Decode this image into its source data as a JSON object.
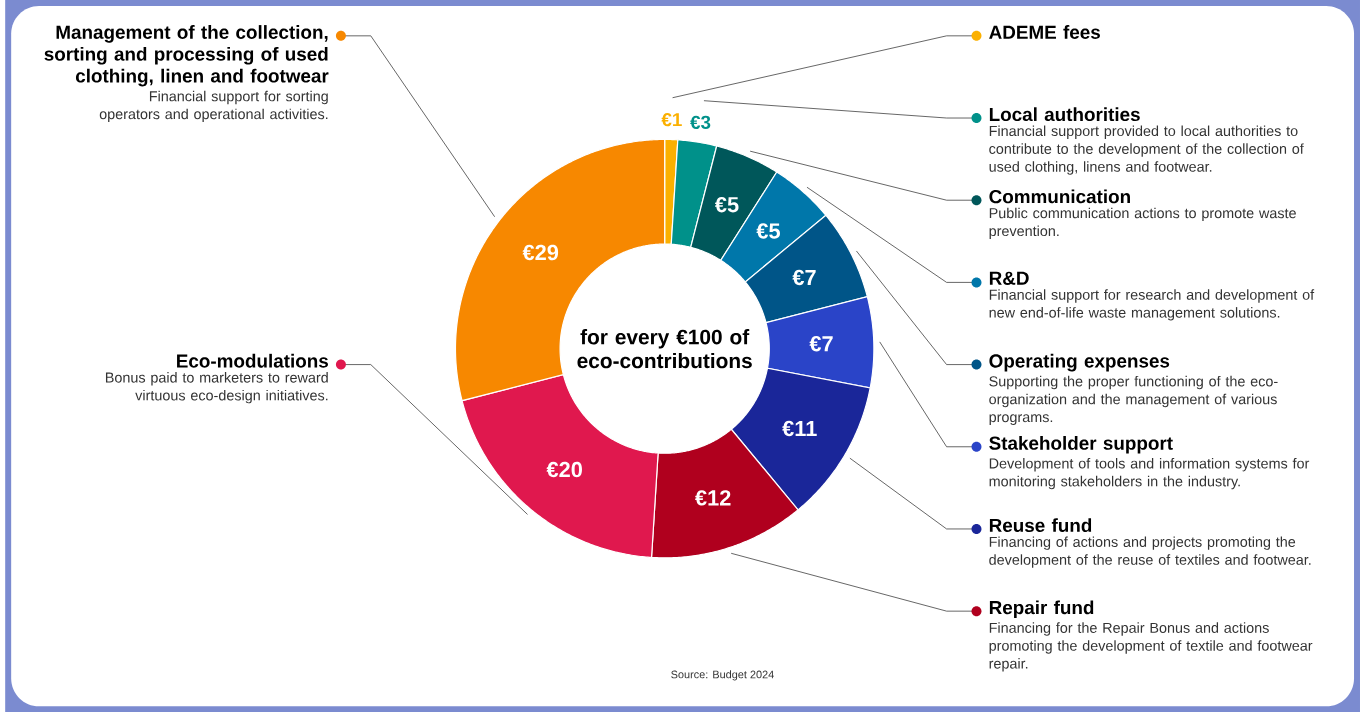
{
  "chart_data": {
    "type": "donut",
    "title": "for every €100 of eco-contributions",
    "categories": [
      "ADEME fees",
      "Local authorities",
      "Communication",
      "R&D",
      "Operating expenses",
      "Stakeholder support",
      "Reuse fund",
      "Repair fund",
      "Eco-modulations",
      "Management of the collection, sorting and processing of used clothing, linen and footwear"
    ],
    "values": [
      1,
      3,
      5,
      5,
      7,
      7,
      11,
      12,
      20,
      29
    ],
    "value_labels": [
      "€1",
      "€3",
      "€5",
      "€5",
      "€7",
      "€7",
      "€11",
      "€12",
      "€20",
      "€29"
    ],
    "colors": [
      "#fbb000",
      "#00918a",
      "#00575a",
      "#0077aa",
      "#005588",
      "#2a44c8",
      "#1a2699",
      "#b0001e",
      "#e0184e",
      "#f78800"
    ],
    "annotations": [
      "Financial support provided to local authorities to contribute to the development of the collection of used clothing, linens and footwear.",
      "Public communication actions to promote waste prevention.",
      "Financial support for research and development of new end-of-life waste management solutions.",
      "Supporting the proper functioning of the eco-organization and the management of various programs.",
      "Development of tools and information systems for monitoring stakeholders in the industry.",
      "Financing of actions and projects promoting the development of the reuse of textiles and footwear.",
      "Financing for the Repair Bonus and actions promoting the development of textile and footwear repair.",
      "Bonus paid to marketers to reward virtuous eco-design initiatives.",
      "Financial support for sorting operators and operational activities.",
      "Source: Budget 2024"
    ],
    "legend": "right"
  }
}
